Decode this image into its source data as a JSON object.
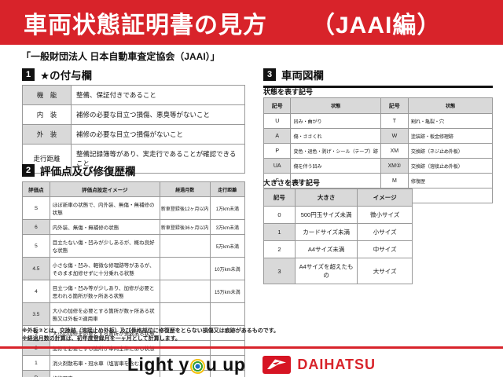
{
  "colors": {
    "banner_red": "#d8232a",
    "daihatsu_red": "#d61423"
  },
  "header": {
    "title_main": "車両状態証明書の見方",
    "title_suffix": "（JAAI編）",
    "subtitle": "「一般財団法人 日本自動車査定協会（JAAI）」"
  },
  "section1": {
    "number": "1",
    "title": "★の付与欄",
    "rows": [
      [
        "機　能",
        "整備、保証付きであること"
      ],
      [
        "内　装",
        "補修の必要な目立つ損傷、悪臭等がないこと"
      ],
      [
        "外　装",
        "補修の必要な目立つ損傷がないこと"
      ],
      [
        "走行距離",
        "整備記録簿等があり、実走行であることが確認できること"
      ]
    ]
  },
  "section2": {
    "number": "2",
    "title": "評価点及び修復歴欄",
    "headers": [
      "評価点",
      "評価点設定イメージ",
      "経過月数",
      "走行距離"
    ],
    "rows": [
      [
        "S",
        "ほぼ新車の状態で、内外装、無傷・無補修の状態",
        "新車登録後12ヶ月以内",
        "1万km未満"
      ],
      [
        "6",
        "内外装、無傷・無補修の状態",
        "新車登録後36ヶ月以内",
        "3万km未満"
      ],
      [
        "5",
        "目立たない傷・凹みが少しあるが、概ね良好な状態",
        "",
        "5万km未満"
      ],
      [
        "4.5",
        "小さな傷・凹み、軽微な修理跡等があるが、そのまま加修せずに十分乗れる状態",
        "",
        "10万km未満"
      ],
      [
        "4",
        "目立つ傷・凹み等が少しあり、加修が必要と思われる箇所が数ヶ所ある状態",
        "",
        "15万km未満"
      ],
      [
        "3.5",
        "大小の加修を必要とする箇所が数ヶ所ある状態又は外板②適用車",
        "",
        ""
      ],
      [
        "3",
        "大小の加修を必要とする箇所が多数ある状態",
        "",
        ""
      ],
      [
        "2",
        "加修を必要とする箇所が車両全体にある状態",
        "",
        ""
      ],
      [
        "1",
        "消火剤散布車・冠水車（塩害車を含む）",
        "",
        ""
      ],
      [
        "R",
        "修復歴車",
        "",
        ""
      ]
    ],
    "notes": [
      "※外板②とは、交換跡（溶接止め外板）及び骨格部位に修復歴をとらない損傷又は痕跡があるものです。",
      "※経過月数の計算は、初年度登録月を一ヶ月として計算します。"
    ]
  },
  "section3": {
    "number": "3",
    "title": "車両図欄",
    "symbols_title": "状態を表す記号",
    "symbols_headers": [
      "記号",
      "状態",
      "記号",
      "状態"
    ],
    "symbols_rows": [
      [
        "U",
        "凹み・曲がり",
        "T",
        "割れ・亀裂・穴"
      ],
      [
        "A",
        "傷・ささくれ",
        "W",
        "塗装跡・板金修理跡"
      ],
      [
        "P",
        "変色・退色・剥げ・シール（テープ）跡",
        "XM",
        "交換跡（ネジ止め外板）"
      ],
      [
        "UA",
        "傷を伴う凹み",
        "XM②",
        "交換跡（溶接止め外板）"
      ],
      [
        "S",
        "さび",
        "M",
        "修復歴"
      ],
      [
        "C",
        "腐食",
        "",
        ""
      ]
    ],
    "size_title": "大きさを表す記号",
    "size_headers": [
      "記号",
      "大きさ",
      "イメージ"
    ],
    "size_rows": [
      [
        "0",
        "500円玉サイズ未満",
        "微小サイズ"
      ],
      [
        "1",
        "カードサイズ未満",
        "小サイズ"
      ],
      [
        "2",
        "A4サイズ未満",
        "中サイズ"
      ],
      [
        "3",
        "A4サイズを超えたもの",
        "大サイズ"
      ]
    ]
  },
  "footer": {
    "slogan_left": "Light y",
    "slogan_right": "u up",
    "brand_name": "DAIHATSU"
  }
}
